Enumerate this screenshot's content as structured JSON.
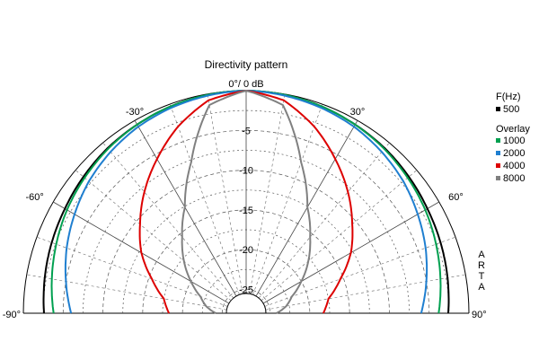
{
  "chart_data": {
    "type": "polar-half",
    "title": "Directivity pattern",
    "center_label": "0°/ 0 dB",
    "radial_range_db": [
      -28,
      0
    ],
    "radial_ticks": [
      {
        "db": -5,
        "label": "-5"
      },
      {
        "db": -10,
        "label": "-10"
      },
      {
        "db": -15,
        "label": "-15"
      },
      {
        "db": -20,
        "label": "-20"
      },
      {
        "db": -25,
        "label": "-25"
      }
    ],
    "angle_range_deg": [
      -90,
      90
    ],
    "angle_labels": [
      {
        "deg": -90,
        "label": "-90°"
      },
      {
        "deg": -60,
        "label": "-60°"
      },
      {
        "deg": -30,
        "label": "-30°"
      },
      {
        "deg": 30,
        "label": "30°"
      },
      {
        "deg": 60,
        "label": "60°"
      },
      {
        "deg": 90,
        "label": "90°"
      }
    ],
    "grid": true,
    "legend": {
      "header": "F(Hz)",
      "overlay_label": "Overlay",
      "placement": "right"
    },
    "side_text": [
      "A",
      "R",
      "T",
      "A"
    ],
    "angles_deg": [
      0,
      10,
      20,
      30,
      40,
      50,
      60,
      70,
      80,
      90
    ],
    "series": [
      {
        "name": "500",
        "color": "#000000",
        "overlay": false,
        "db": [
          0,
          -0.1,
          -0.3,
          -0.6,
          -0.9,
          -1.3,
          -1.7,
          -2.0,
          -2.3,
          -2.6
        ]
      },
      {
        "name": "1000",
        "color": "#00a050",
        "overlay": true,
        "db": [
          0,
          -0.1,
          -0.3,
          -0.6,
          -1.0,
          -1.5,
          -2.0,
          -2.6,
          -3.2,
          -3.8
        ]
      },
      {
        "name": "2000",
        "color": "#1f7fd0",
        "overlay": true,
        "db": [
          0,
          -0.2,
          -0.5,
          -0.9,
          -1.5,
          -2.2,
          -3.1,
          -4.0,
          -5.0,
          -6.0
        ]
      },
      {
        "name": "4000",
        "color": "#dd0000",
        "overlay": true,
        "db": [
          0,
          -0.8,
          -3.0,
          -5.6,
          -8.1,
          -10.6,
          -12.8,
          -15.4,
          -17.5,
          -18.3
        ]
      },
      {
        "name": "8000",
        "color": "#808080",
        "overlay": true,
        "db": [
          0,
          -1.4,
          -7.8,
          -12.6,
          -15.5,
          -17.8,
          -20.0,
          -21.9,
          -22.9,
          -24.2
        ]
      }
    ]
  }
}
